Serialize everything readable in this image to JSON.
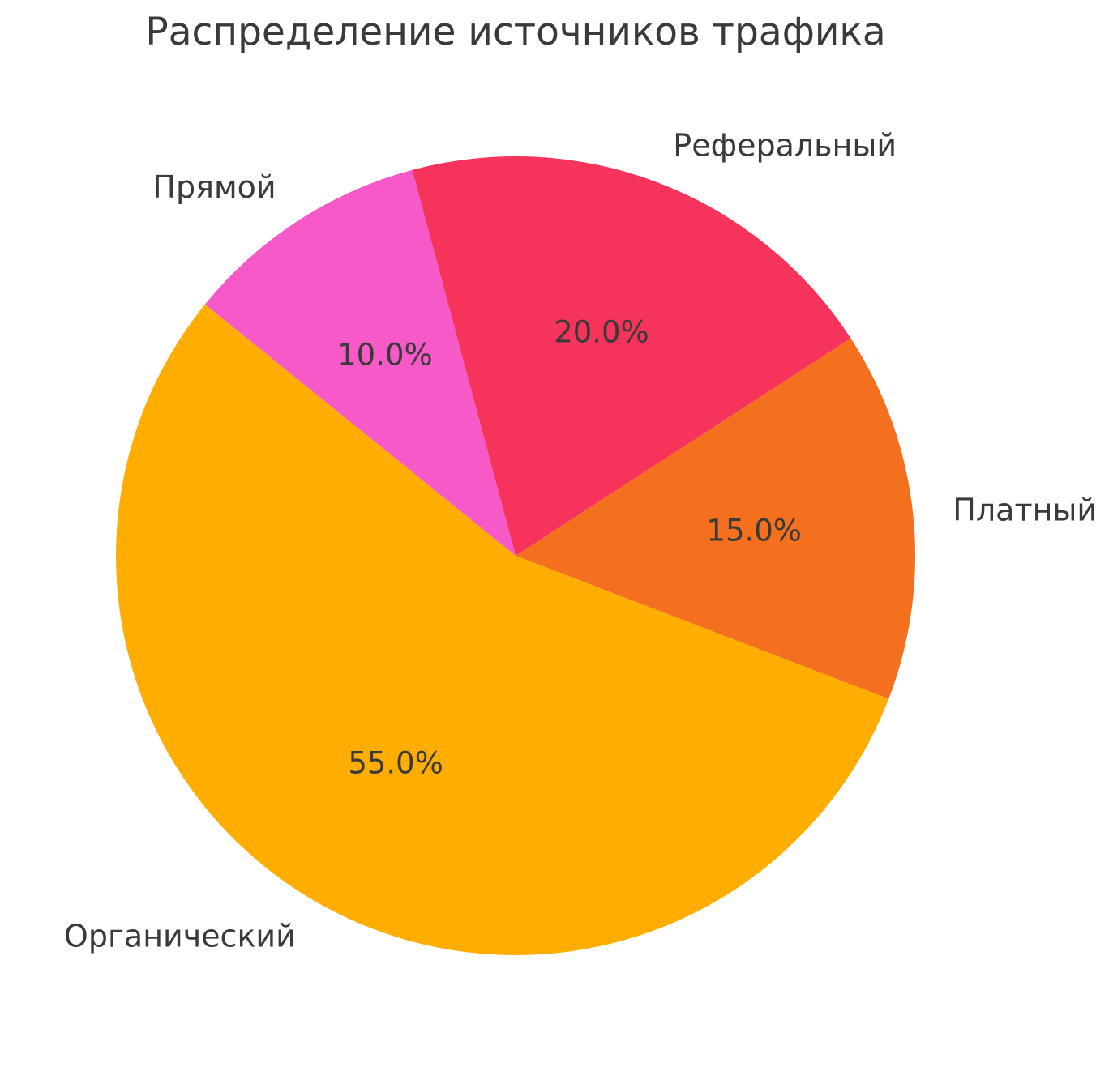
{
  "page": {
    "background_color": "#ffffff",
    "text_color": "#3a3a3a"
  },
  "chart_data": {
    "type": "pie",
    "title": "Распределение источников трафика",
    "start_angle_deg": -21,
    "direction": "counterclockwise",
    "total": 100,
    "legend": "none",
    "slices": [
      {
        "label": "Платный",
        "value": 15.0,
        "pct_label": "15.0%",
        "color": "#f4701f"
      },
      {
        "label": "Реферальный",
        "value": 20.0,
        "pct_label": "20.0%",
        "color": "#f5335b"
      },
      {
        "label": "Прямой",
        "value": 10.0,
        "pct_label": "10.0%",
        "color": "#f75ac8"
      },
      {
        "label": "Органический",
        "value": 55.0,
        "pct_label": "55.0%",
        "color": "#ffad00"
      }
    ]
  }
}
